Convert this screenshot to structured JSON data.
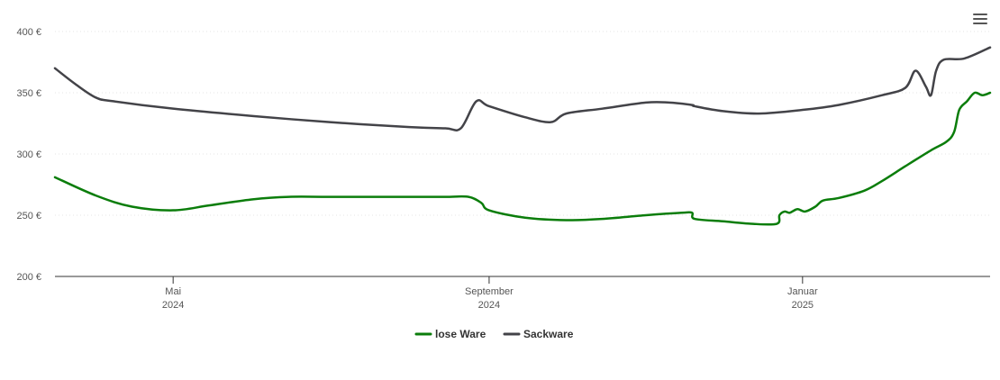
{
  "chart_data": {
    "type": "line",
    "title": "",
    "xlabel": "",
    "ylabel": "",
    "ylim": [
      200,
      400
    ],
    "y_ticks": [
      {
        "value": 200,
        "label": "200 €"
      },
      {
        "value": 250,
        "label": "250 €"
      },
      {
        "value": 300,
        "label": "300 €"
      },
      {
        "value": 350,
        "label": "350 €"
      },
      {
        "value": 400,
        "label": "400 €"
      }
    ],
    "xlim": [
      "2024-03-16",
      "2025-03-15"
    ],
    "x_ticks": [
      {
        "date": "2024-05-01",
        "label": "Mai",
        "sublabel": "2024"
      },
      {
        "date": "2024-09-01",
        "label": "September",
        "sublabel": "2024"
      },
      {
        "date": "2025-01-01",
        "label": "Januar",
        "sublabel": "2025"
      }
    ],
    "legend": "bottom-center",
    "grid": true,
    "series": [
      {
        "name": "lose Ware",
        "color": "#0b7d0b",
        "points": [
          [
            "2024-03-16",
            281
          ],
          [
            "2024-04-01",
            266
          ],
          [
            "2024-04-15",
            257
          ],
          [
            "2024-05-01",
            254
          ],
          [
            "2024-05-15",
            258
          ],
          [
            "2024-06-01",
            263
          ],
          [
            "2024-06-15",
            265
          ],
          [
            "2024-07-01",
            265
          ],
          [
            "2024-08-01",
            265
          ],
          [
            "2024-08-15",
            265
          ],
          [
            "2024-08-24",
            265
          ],
          [
            "2024-08-29",
            260
          ],
          [
            "2024-09-01",
            254
          ],
          [
            "2024-09-15",
            248
          ],
          [
            "2024-10-01",
            246
          ],
          [
            "2024-10-15",
            247
          ],
          [
            "2024-11-01",
            250
          ],
          [
            "2024-11-15",
            252
          ],
          [
            "2024-11-19",
            252
          ],
          [
            "2024-11-20",
            247
          ],
          [
            "2024-12-01",
            245
          ],
          [
            "2024-12-12",
            243
          ],
          [
            "2024-12-22",
            243
          ],
          [
            "2024-12-23",
            250
          ],
          [
            "2024-12-25",
            253
          ],
          [
            "2024-12-27",
            252
          ],
          [
            "2024-12-30",
            255
          ],
          [
            "2025-01-02",
            253
          ],
          [
            "2025-01-06",
            257
          ],
          [
            "2025-01-09",
            262
          ],
          [
            "2025-01-15",
            264
          ],
          [
            "2025-01-25",
            270
          ],
          [
            "2025-02-01",
            278
          ],
          [
            "2025-02-10",
            290
          ],
          [
            "2025-02-20",
            303
          ],
          [
            "2025-02-26",
            310
          ],
          [
            "2025-03-01",
            318
          ],
          [
            "2025-03-03",
            336
          ],
          [
            "2025-03-06",
            343
          ],
          [
            "2025-03-09",
            350
          ],
          [
            "2025-03-12",
            348
          ],
          [
            "2025-03-15",
            350
          ]
        ]
      },
      {
        "name": "Sackware",
        "color": "#434348",
        "points": [
          [
            "2024-03-16",
            370
          ],
          [
            "2024-03-24",
            357
          ],
          [
            "2024-04-01",
            346
          ],
          [
            "2024-04-08",
            343
          ],
          [
            "2024-05-01",
            337
          ],
          [
            "2024-06-01",
            331
          ],
          [
            "2024-07-01",
            326
          ],
          [
            "2024-08-01",
            322
          ],
          [
            "2024-08-15",
            321
          ],
          [
            "2024-08-21",
            321
          ],
          [
            "2024-08-27",
            343
          ],
          [
            "2024-09-01",
            339
          ],
          [
            "2024-09-15",
            330
          ],
          [
            "2024-09-25",
            326
          ],
          [
            "2024-10-01",
            333
          ],
          [
            "2024-10-15",
            337
          ],
          [
            "2024-11-01",
            342
          ],
          [
            "2024-11-10",
            342
          ],
          [
            "2024-11-19",
            340
          ],
          [
            "2024-11-20",
            339
          ],
          [
            "2024-12-01",
            335
          ],
          [
            "2024-12-15",
            333
          ],
          [
            "2025-01-01",
            336
          ],
          [
            "2025-01-15",
            340
          ],
          [
            "2025-02-01",
            348
          ],
          [
            "2025-02-10",
            354
          ],
          [
            "2025-02-14",
            368
          ],
          [
            "2025-02-18",
            355
          ],
          [
            "2025-02-20",
            348
          ],
          [
            "2025-02-22",
            368
          ],
          [
            "2025-02-25",
            377
          ],
          [
            "2025-03-05",
            378
          ],
          [
            "2025-03-15",
            387
          ]
        ]
      }
    ]
  }
}
